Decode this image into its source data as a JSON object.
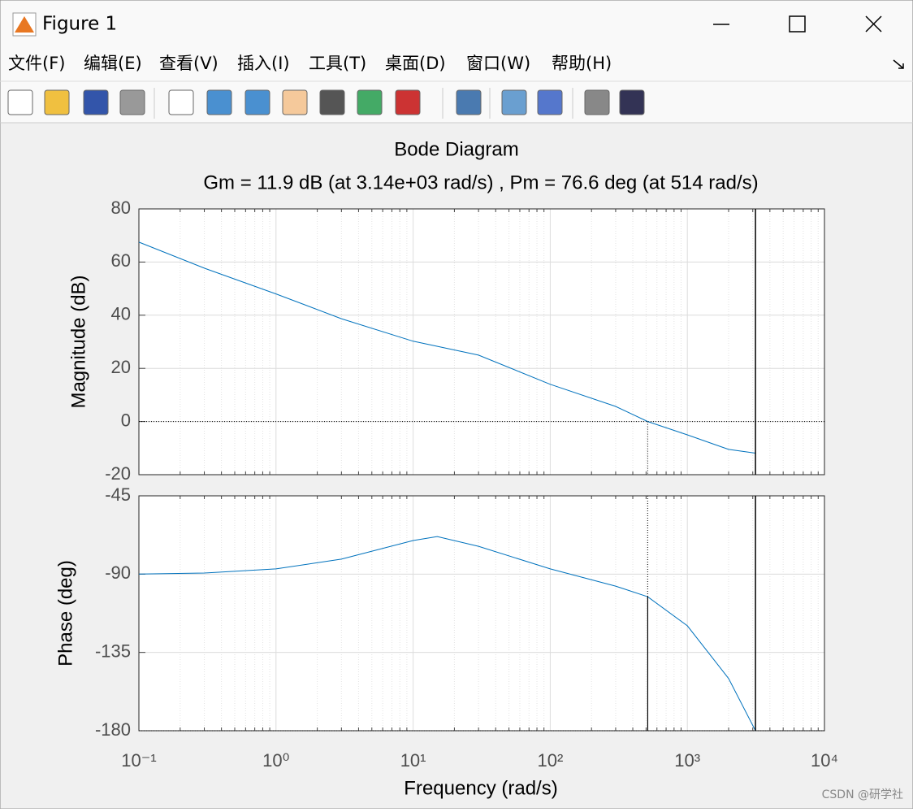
{
  "window": {
    "title": "Figure 1",
    "menus": [
      "文件(F)",
      "编辑(E)",
      "查看(V)",
      "插入(I)",
      "工具(T)",
      "桌面(D)",
      "窗口(W)",
      "帮助(H)"
    ],
    "watermark": "CSDN @研学社"
  },
  "chart_data": [
    {
      "type": "line",
      "title": "Bode Diagram",
      "subtitle": "Gm = 11.9 dB (at 3.14e+03 rad/s) ,  Pm = 76.6 deg (at 514 rad/s)",
      "ylabel": "Magnitude (dB)",
      "xscale": "log",
      "grid": true,
      "color": "#0072bd",
      "x": [
        0.1,
        0.3,
        1,
        3,
        10,
        30,
        100,
        300,
        514,
        1000,
        2000,
        3140
      ],
      "values": [
        67.5,
        57.7,
        48,
        38.7,
        30.2,
        25,
        14,
        5.7,
        0,
        -5,
        -10.5,
        -11.9
      ],
      "xlim": [
        0.1,
        10000
      ],
      "xticks": [
        0.1,
        1,
        10,
        100,
        1000,
        10000
      ],
      "ylim": [
        -20,
        80
      ],
      "yticks": [
        -20,
        0,
        20,
        40,
        60,
        80
      ],
      "crossover_x": [
        514,
        3140
      ]
    },
    {
      "type": "line",
      "ylabel": "Phase (deg)",
      "xlabel": "Frequency  (rad/s)",
      "xscale": "log",
      "grid": true,
      "color": "#0072bd",
      "x": [
        0.1,
        0.3,
        1,
        3,
        10,
        15,
        30,
        100,
        300,
        514,
        1000,
        2000,
        3140
      ],
      "values": [
        -90,
        -89.4,
        -87,
        -81.4,
        -70.7,
        -68.4,
        -74,
        -87,
        -96.9,
        -103,
        -119.7,
        -150,
        -180
      ],
      "xlim": [
        0.1,
        10000
      ],
      "xticks": [
        {
          "value": 0.1,
          "label": "10⁻¹"
        },
        {
          "value": 1,
          "label": "10⁰"
        },
        {
          "value": 10,
          "label": "10¹"
        },
        {
          "value": 100,
          "label": "10²"
        },
        {
          "value": 1000,
          "label": "10³"
        },
        {
          "value": 10000,
          "label": "10⁴"
        }
      ],
      "ylim": [
        -180,
        -45
      ],
      "yticks": [
        -180,
        -135,
        -90,
        -45
      ],
      "crossover_x": [
        514,
        3140
      ]
    }
  ]
}
